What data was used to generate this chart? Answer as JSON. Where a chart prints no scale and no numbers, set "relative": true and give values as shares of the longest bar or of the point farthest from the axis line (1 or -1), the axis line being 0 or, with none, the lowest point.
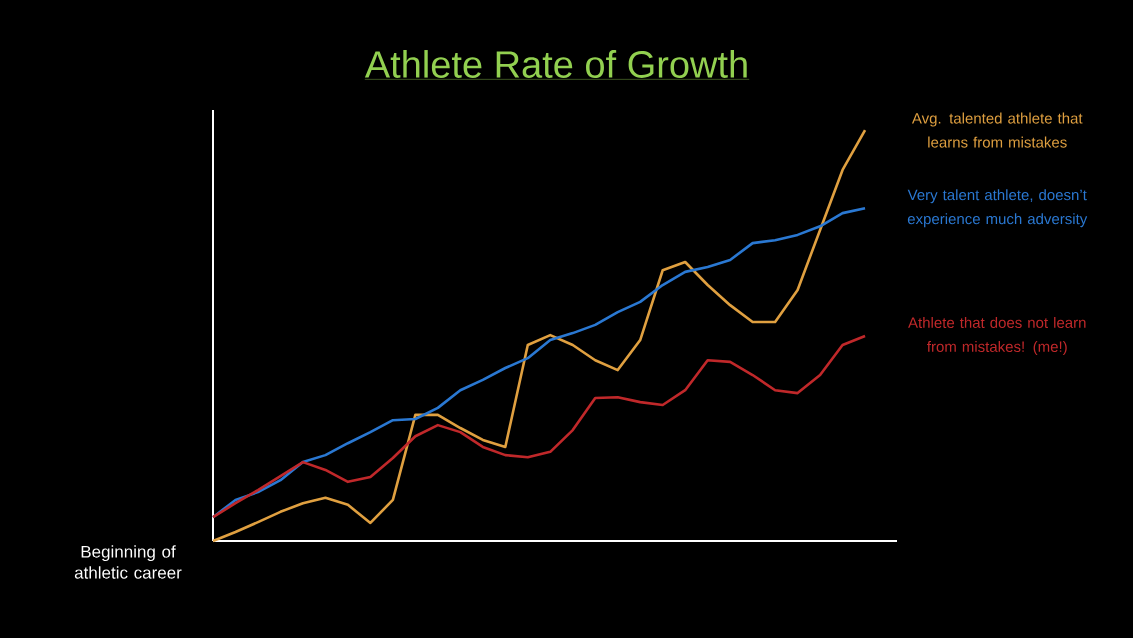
{
  "chart_data": {
    "type": "line",
    "title": "Athlete Rate of Growth",
    "relative": true,
    "legend": false,
    "marker": "none",
    "categories": [
      null,
      null,
      null,
      null,
      null,
      null,
      null,
      null,
      null,
      null,
      null,
      null,
      null,
      null,
      null,
      null,
      null,
      null,
      null,
      null,
      null,
      null,
      null,
      null,
      null,
      null,
      null,
      null,
      null,
      null
    ],
    "series": [
      {
        "name": "Avg. talented athlete that learns from mistakes",
        "color": "#e0a040",
        "values": [
          0,
          0.022,
          0.046,
          0.071,
          0.092,
          0.105,
          0.088,
          0.044,
          0.1,
          0.307,
          0.307,
          0.275,
          0.246,
          0.229,
          0.477,
          0.501,
          0.477,
          0.44,
          0.416,
          0.489,
          0.659,
          0.679,
          0.623,
          0.574,
          0.533,
          0.533,
          0.611,
          0.757,
          0.903,
          1
        ]
      },
      {
        "name": "Very talent athlete, doesn’t experience much adversity",
        "color": "#2a78d2",
        "values": [
          0.058,
          0.1,
          0.119,
          0.148,
          0.192,
          0.209,
          0.238,
          0.265,
          0.294,
          0.297,
          0.324,
          0.367,
          0.392,
          0.421,
          0.445,
          0.489,
          0.506,
          0.526,
          0.557,
          0.582,
          0.623,
          0.655,
          0.667,
          0.684,
          0.725,
          0.732,
          0.745,
          0.766,
          0.798,
          0.81
        ]
      },
      {
        "name": "Athlete that does not learn from mistakes! (me!)",
        "color": "#c0282a",
        "values": [
          0.058,
          0.092,
          0.124,
          0.158,
          0.192,
          0.173,
          0.144,
          0.156,
          0.202,
          0.255,
          0.282,
          0.265,
          0.229,
          0.209,
          0.204,
          0.217,
          0.27,
          0.348,
          0.35,
          0.338,
          0.331,
          0.367,
          0.44,
          0.436,
          0.404,
          0.367,
          0.36,
          0.404,
          0.477,
          0.499
        ]
      }
    ],
    "annotations": [
      "Beginning of athletic career"
    ]
  }
}
